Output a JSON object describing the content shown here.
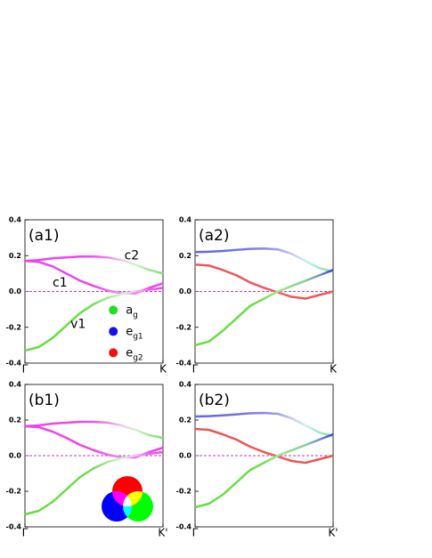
{
  "chart_data": [
    {
      "type": "line",
      "title": "(a1)",
      "xlim": [
        0,
        1
      ],
      "ylim": [
        -0.4,
        0.4
      ],
      "xticks": [
        {
          "value": 0,
          "label": "Γ"
        },
        {
          "value": 1,
          "label": "K"
        }
      ],
      "yticks": [
        -0.4,
        -0.2,
        {
          "value": 0,
          "label": "0.0"
        },
        0.2,
        0.4
      ],
      "hline": 0,
      "hline_color": "#cc33cc",
      "x": [
        0,
        0.1,
        0.2,
        0.3,
        0.4,
        0.5,
        0.6,
        0.7,
        0.8,
        0.9,
        1
      ],
      "series": [
        {
          "values": [
            0.17,
            0.175,
            0.185,
            0.19,
            0.195,
            0.195,
            0.19,
            0.175,
            0.15,
            0.12,
            0.1
          ],
          "colors": [
            "#ee44ee",
            "#ee44ee",
            "#ee44ee",
            "#ee44ee",
            "#ee44ee",
            "#ee55ee",
            "#ee88ee",
            "#f0c8f0",
            "#d8f0d0",
            "#a0e890",
            "#80e070"
          ]
        },
        {
          "values": [
            0.17,
            0.165,
            0.14,
            0.1,
            0.06,
            0.03,
            0.005,
            -0.01,
            -0.01,
            0.02,
            0.045
          ],
          "colors": [
            "#ee44ee",
            "#ee44ee",
            "#ee44ee",
            "#ee44ee",
            "#ee44ee",
            "#ee44ee",
            "#ee66ee",
            "#ee88ee",
            "#ee66ee",
            "#ee44ee",
            "#ee44ee"
          ]
        },
        {
          "values": [
            -0.33,
            -0.31,
            -0.26,
            -0.19,
            -0.12,
            -0.07,
            -0.035,
            -0.015,
            0.0,
            0.01,
            0.02
          ],
          "colors": [
            "#66dd44",
            "#66dd44",
            "#66dd44",
            "#66dd44",
            "#66dd44",
            "#77dd55",
            "#aae899",
            "#d8f0d0",
            "#f0c0f0",
            "#ee66ee",
            "#ee44ee"
          ]
        }
      ],
      "annotations": [
        "c2",
        "c1",
        "v1"
      ],
      "legend": [
        {
          "label": "a",
          "sub": "g",
          "color": "#22dd22"
        },
        {
          "label": "e",
          "sub": "g1",
          "color": "#1111ee"
        },
        {
          "label": "e",
          "sub": "g2",
          "color": "#ee1111"
        }
      ]
    },
    {
      "type": "line",
      "title": "(a2)",
      "xlim": [
        0,
        1
      ],
      "ylim": [
        -0.4,
        0.4
      ],
      "xticks": [
        {
          "value": 0,
          "label": "Γ"
        },
        {
          "value": 1,
          "label": "K"
        }
      ],
      "yticks": [
        -0.4,
        -0.2,
        {
          "value": 0,
          "label": "0.0"
        },
        0.2,
        0.4
      ],
      "hline": 0,
      "hline_color": "#cc33cc",
      "x": [
        0,
        0.1,
        0.2,
        0.3,
        0.4,
        0.5,
        0.6,
        0.7,
        0.8,
        0.9,
        1
      ],
      "series": [
        {
          "values": [
            0.22,
            0.222,
            0.226,
            0.232,
            0.238,
            0.24,
            0.235,
            0.21,
            0.17,
            0.13,
            0.11
          ],
          "colors": [
            "#6666ee",
            "#6666ee",
            "#6a6aee",
            "#7070ee",
            "#7a7aee",
            "#8888ee",
            "#a0a0ee",
            "#c8c8f0",
            "#c8f0f0",
            "#99e8cc",
            "#88e088"
          ]
        },
        {
          "values": [
            0.15,
            0.145,
            0.12,
            0.09,
            0.05,
            0.02,
            -0.005,
            -0.03,
            -0.04,
            -0.02,
            0.0
          ],
          "colors": [
            "#ee5555",
            "#ee5555",
            "#ee5555",
            "#ee5555",
            "#ee5555",
            "#ee5555",
            "#ee6666",
            "#ee5555",
            "#ee5555",
            "#ee5555",
            "#ee5555"
          ]
        },
        {
          "values": [
            -0.3,
            -0.28,
            -0.22,
            -0.15,
            -0.08,
            -0.04,
            0.0,
            0.03,
            0.06,
            0.09,
            0.12
          ],
          "colors": [
            "#66dd44",
            "#66dd44",
            "#66dd44",
            "#66dd44",
            "#66dd44",
            "#77dd55",
            "#a0e890",
            "#88dd88",
            "#88cc99",
            "#7788dd",
            "#3344dd"
          ]
        }
      ]
    },
    {
      "type": "line",
      "title": "(b1)",
      "xlim": [
        0,
        1
      ],
      "ylim": [
        -0.4,
        0.4
      ],
      "xticks": [
        {
          "value": 0,
          "label": "Γ"
        },
        {
          "value": 1,
          "label": "K'"
        }
      ],
      "yticks": [
        -0.4,
        -0.2,
        {
          "value": 0,
          "label": "0.0"
        },
        0.2,
        0.4
      ],
      "hline": 0,
      "hline_color": "#cc33cc",
      "x": [
        0,
        0.1,
        0.2,
        0.3,
        0.4,
        0.5,
        0.6,
        0.7,
        0.8,
        0.9,
        1
      ],
      "series": [
        {
          "values": [
            0.165,
            0.17,
            0.18,
            0.185,
            0.19,
            0.19,
            0.185,
            0.17,
            0.145,
            0.115,
            0.1
          ],
          "colors": [
            "#ee44ee",
            "#ee44ee",
            "#ee44ee",
            "#ee44ee",
            "#ee44ee",
            "#ee55ee",
            "#ee88ee",
            "#f0c8f0",
            "#d8f0d0",
            "#a0e890",
            "#80e070"
          ]
        },
        {
          "values": [
            0.165,
            0.16,
            0.135,
            0.1,
            0.06,
            0.03,
            0.005,
            -0.01,
            -0.01,
            0.02,
            0.045
          ],
          "colors": [
            "#ee44ee",
            "#ee44ee",
            "#ee44ee",
            "#ee44ee",
            "#ee44ee",
            "#ee44ee",
            "#ee66ee",
            "#ee88ee",
            "#ee66ee",
            "#ee44ee",
            "#ee44ee"
          ]
        },
        {
          "values": [
            -0.33,
            -0.31,
            -0.26,
            -0.19,
            -0.12,
            -0.07,
            -0.035,
            -0.015,
            0.0,
            0.01,
            0.02
          ],
          "colors": [
            "#66dd44",
            "#66dd44",
            "#66dd44",
            "#66dd44",
            "#66dd44",
            "#77dd55",
            "#aae899",
            "#d8f0d0",
            "#f0c0f0",
            "#ee66ee",
            "#ee44ee"
          ]
        }
      ]
    },
    {
      "type": "line",
      "title": "(b2)",
      "xlim": [
        0,
        1
      ],
      "ylim": [
        -0.4,
        0.4
      ],
      "xticks": [
        {
          "value": 0,
          "label": "Γ"
        },
        {
          "value": 1,
          "label": "K'"
        }
      ],
      "yticks": [
        -0.4,
        -0.2,
        {
          "value": 0,
          "label": "0.0"
        },
        0.2,
        0.4
      ],
      "hline": 0,
      "hline_color": "#cc33cc",
      "x": [
        0,
        0.1,
        0.2,
        0.3,
        0.4,
        0.5,
        0.6,
        0.7,
        0.8,
        0.9,
        1
      ],
      "series": [
        {
          "values": [
            0.22,
            0.222,
            0.226,
            0.232,
            0.238,
            0.24,
            0.235,
            0.21,
            0.17,
            0.13,
            0.11
          ],
          "colors": [
            "#6666ee",
            "#6666ee",
            "#6a6aee",
            "#7070ee",
            "#7a7aee",
            "#8888ee",
            "#a0a0ee",
            "#c8c8f0",
            "#c8f0f0",
            "#99e8cc",
            "#88e088"
          ]
        },
        {
          "values": [
            0.15,
            0.145,
            0.12,
            0.09,
            0.05,
            0.02,
            -0.005,
            -0.03,
            -0.04,
            -0.02,
            0.0
          ],
          "colors": [
            "#ee5555",
            "#ee5555",
            "#ee5555",
            "#ee5555",
            "#ee5555",
            "#ee5555",
            "#ee6666",
            "#ee5555",
            "#ee5555",
            "#ee5555",
            "#ee5555"
          ]
        },
        {
          "values": [
            -0.29,
            -0.27,
            -0.22,
            -0.15,
            -0.08,
            -0.04,
            0.0,
            0.03,
            0.06,
            0.09,
            0.12
          ],
          "colors": [
            "#66dd44",
            "#66dd44",
            "#66dd44",
            "#66dd44",
            "#66dd44",
            "#77dd55",
            "#a0e890",
            "#88dd88",
            "#88cc99",
            "#7788dd",
            "#3344dd"
          ]
        }
      ]
    }
  ]
}
